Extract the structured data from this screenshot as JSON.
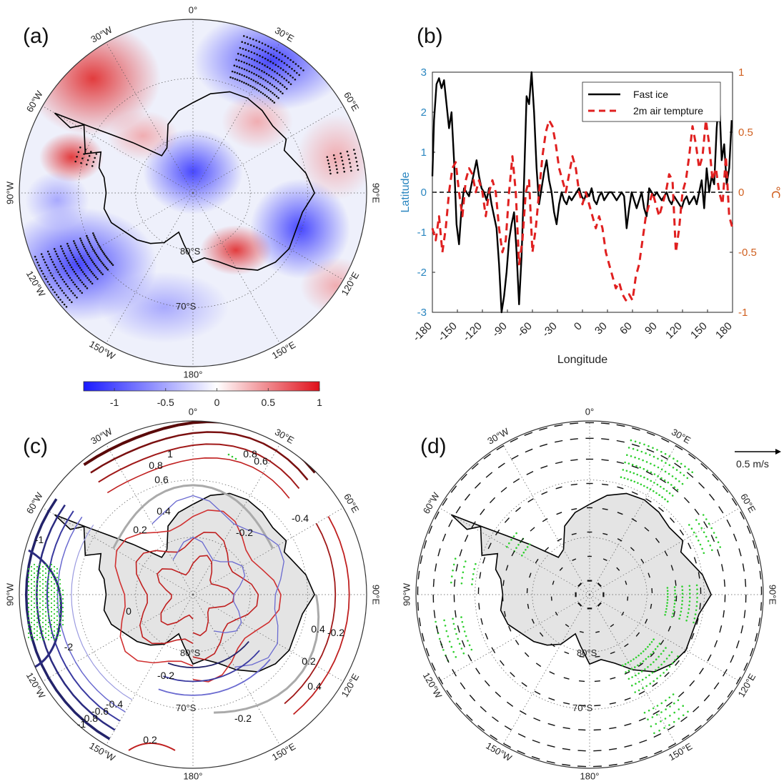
{
  "panels": {
    "a": {
      "letter": "(a)"
    },
    "b": {
      "letter": "(b)"
    },
    "c": {
      "letter": "(c)"
    },
    "d": {
      "letter": "(d)"
    }
  },
  "polar_labels": {
    "lon": [
      {
        "deg": 0,
        "text": "0°"
      },
      {
        "deg": 30,
        "text": "30°E"
      },
      {
        "deg": 60,
        "text": "60°E"
      },
      {
        "deg": 90,
        "text": "90°E"
      },
      {
        "deg": 120,
        "text": "120°E"
      },
      {
        "deg": 150,
        "text": "150°E"
      },
      {
        "deg": 180,
        "text": "180°"
      },
      {
        "deg": -150,
        "text": "150°W"
      },
      {
        "deg": -120,
        "text": "120°W"
      },
      {
        "deg": -90,
        "text": "90°W"
      },
      {
        "deg": -60,
        "text": "60°W"
      },
      {
        "deg": -30,
        "text": "30°W"
      }
    ],
    "lat": [
      {
        "text": "80°S"
      },
      {
        "text": "70°S"
      }
    ]
  },
  "colorbar": {
    "ticks": [
      "-1",
      "-0.5",
      "0",
      "0.5",
      "1"
    ],
    "tick_values": [
      -1,
      -0.5,
      0,
      0.5,
      1
    ],
    "range": [
      -1.3,
      1.0
    ],
    "colors": {
      "neg": "#1a1aff",
      "mid": "#ffffff",
      "pos": "#e0101a"
    }
  },
  "vector_legend": {
    "label": "0.5 m/s"
  },
  "contour_labels": [
    "1",
    "0.8",
    "0.6",
    "0.4",
    "0.2",
    "0",
    "-0.2",
    "-0.4",
    "-0.6",
    "-0.8",
    "-1",
    "-2"
  ],
  "chart_data": [
    {
      "panel": "a",
      "type": "heatmap",
      "projection": "south-polar-stereographic",
      "colorbar_range": [
        -1.3,
        1.0
      ],
      "stippling": "significant regions"
    },
    {
      "panel": "b",
      "type": "line",
      "xlabel": "Longitude",
      "ylabel_left": "Latitude",
      "ylabel_right": "℃",
      "xlim": [
        -180,
        180
      ],
      "ylim_left": [
        -3,
        3
      ],
      "ylim_right": [
        -1,
        1
      ],
      "xticks": [
        "-180",
        "-150",
        "-120",
        "-90",
        "-60",
        "-30",
        "0",
        "30",
        "60",
        "90",
        "120",
        "150",
        "180"
      ],
      "yticks_left": [
        "3",
        "2",
        "1",
        "0",
        "-1",
        "-2",
        "-3"
      ],
      "yticks_right": [
        "1",
        "0.5",
        "0",
        "-0.5",
        "-1"
      ],
      "legend_position": "top-right",
      "series": [
        {
          "name": "Fast ice",
          "axis": "left",
          "color": "#000000",
          "style": "solid",
          "x": [
            -180,
            -178,
            -175,
            -172,
            -169,
            -166,
            -163,
            -160,
            -157,
            -154,
            -151,
            -148,
            -145,
            -142,
            -139,
            -136,
            -133,
            -130,
            -127,
            -124,
            -121,
            -118,
            -115,
            -112,
            -109,
            -106,
            -103,
            -100,
            -97,
            -94,
            -91,
            -88,
            -85,
            -82,
            -79,
            -76,
            -73,
            -70,
            -67,
            -64,
            -61,
            -58,
            -55,
            -52,
            -49,
            -46,
            -43,
            -40,
            -37,
            -34,
            -31,
            -28,
            -25,
            -22,
            -19,
            -16,
            -13,
            -10,
            -7,
            -4,
            -1,
            2,
            5,
            8,
            11,
            14,
            17,
            20,
            23,
            26,
            29,
            32,
            35,
            38,
            41,
            44,
            47,
            50,
            53,
            56,
            59,
            62,
            65,
            68,
            71,
            74,
            77,
            80,
            83,
            86,
            89,
            92,
            95,
            98,
            101,
            104,
            107,
            110,
            113,
            116,
            119,
            122,
            125,
            128,
            131,
            134,
            137,
            140,
            143,
            146,
            149,
            152,
            155,
            158,
            161,
            164,
            167,
            170,
            173,
            176,
            179
          ],
          "y": [
            0.4,
            1.8,
            2.7,
            2.85,
            2.6,
            2.8,
            2.2,
            1.6,
            2.0,
            0.8,
            -0.8,
            -1.3,
            -0.4,
            0.1,
            0.0,
            -0.1,
            0.2,
            0.5,
            0.8,
            0.4,
            0.1,
            0.0,
            -0.2,
            0.1,
            -0.3,
            -0.6,
            -0.9,
            -1.8,
            -3.0,
            -2.6,
            -2.0,
            -1.2,
            -0.8,
            -0.5,
            -1.5,
            -2.8,
            -1.6,
            0.3,
            2.4,
            2.2,
            3.0,
            2.0,
            0.6,
            -0.3,
            0.1,
            0.5,
            0.8,
            0.3,
            0.0,
            -0.5,
            -0.8,
            -0.3,
            0.0,
            -0.2,
            -0.3,
            -0.1,
            -0.2,
            -0.1,
            0.0,
            0.1,
            -0.1,
            -0.2,
            0.0,
            -0.1,
            0.1,
            -0.2,
            -0.3,
            -0.1,
            0.0,
            -0.2,
            -0.1,
            0.0,
            0.0,
            -0.1,
            -0.2,
            -0.1,
            0.0,
            -0.1,
            -0.9,
            -0.4,
            0.0,
            -0.2,
            -0.4,
            -0.2,
            0.0,
            -0.4,
            -0.6,
            0.1,
            0.0,
            -0.1,
            0.0,
            -0.1,
            -0.2,
            -0.1,
            0.0,
            -0.2,
            -0.3,
            -0.1,
            -0.2,
            -0.3,
            -0.4,
            -0.2,
            -0.1,
            -0.3,
            -0.2,
            -0.1,
            -0.3,
            0.0,
            0.3,
            -0.4,
            0.6,
            0.0,
            0.4,
            0.2,
            1.6,
            2.4,
            0.8,
            1.2,
            0.2,
            0.6,
            1.8
          ]
        },
        {
          "name": "2m air tempture",
          "axis": "right",
          "color": "#e02020",
          "style": "dashed",
          "x": [
            -180,
            -176,
            -172,
            -168,
            -164,
            -160,
            -156,
            -152,
            -148,
            -144,
            -140,
            -136,
            -132,
            -128,
            -124,
            -120,
            -116,
            -112,
            -108,
            -104,
            -100,
            -96,
            -92,
            -88,
            -84,
            -80,
            -76,
            -72,
            -68,
            -64,
            -60,
            -56,
            -52,
            -48,
            -44,
            -40,
            -36,
            -32,
            -28,
            -24,
            -20,
            -16,
            -12,
            -8,
            -4,
            0,
            4,
            8,
            12,
            16,
            20,
            24,
            28,
            32,
            36,
            40,
            44,
            48,
            52,
            56,
            60,
            64,
            68,
            72,
            76,
            80,
            84,
            88,
            92,
            96,
            100,
            104,
            108,
            112,
            116,
            120,
            124,
            128,
            132,
            136,
            140,
            144,
            148,
            152,
            156,
            160,
            164,
            168,
            172,
            176,
            180
          ],
          "y": [
            -0.3,
            -0.4,
            -0.2,
            -0.5,
            -0.3,
            0.0,
            0.2,
            0.25,
            0.0,
            -0.2,
            0.1,
            0.2,
            0.15,
            0.0,
            0.1,
            0.0,
            -0.2,
            0.0,
            0.1,
            0.0,
            -0.3,
            -0.5,
            -0.4,
            0.0,
            0.3,
            0.0,
            -0.6,
            -0.4,
            0.0,
            0.1,
            -0.5,
            -0.3,
            0.0,
            0.3,
            0.5,
            0.6,
            0.55,
            0.4,
            0.2,
            0.1,
            0.0,
            0.15,
            0.3,
            0.2,
            0.0,
            -0.1,
            0.0,
            -0.1,
            -0.2,
            -0.3,
            -0.2,
            -0.3,
            -0.5,
            -0.6,
            -0.7,
            -0.8,
            -0.75,
            -0.85,
            -0.9,
            -0.85,
            -0.9,
            -0.7,
            -0.6,
            -0.4,
            -0.2,
            -0.1,
            0.0,
            -0.1,
            -0.2,
            -0.1,
            0.0,
            0.15,
            0.1,
            -0.5,
            -0.3,
            0.0,
            0.1,
            0.3,
            0.55,
            0.4,
            0.2,
            0.3,
            0.6,
            0.4,
            0.1,
            0.2,
            0.0,
            -0.1,
            0.3,
            -0.2,
            -0.3
          ]
        }
      ]
    },
    {
      "panel": "c",
      "type": "contour",
      "projection": "south-polar-stereographic"
    },
    {
      "panel": "d",
      "type": "vector",
      "projection": "south-polar-stereographic",
      "reference_vector": "0.5 m/s"
    }
  ]
}
